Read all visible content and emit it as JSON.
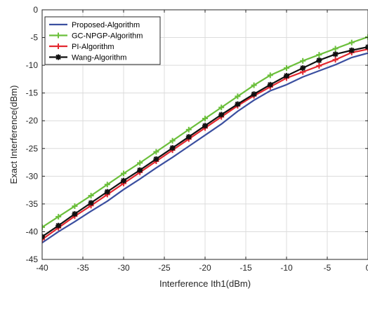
{
  "chart_data": {
    "type": "line",
    "title": "",
    "xlabel": "Interference Ith1(dBm)",
    "ylabel": "Exact Interference(dBm)",
    "xlim": [
      -40,
      0
    ],
    "ylim": [
      -45,
      0
    ],
    "xticks": [
      -40,
      -35,
      -30,
      -25,
      -20,
      -15,
      -10,
      -5,
      0
    ],
    "yticks": [
      0,
      -5,
      -10,
      -15,
      -20,
      -25,
      -30,
      -35,
      -40,
      -45
    ],
    "xtick_labels": [
      "-40",
      "-35",
      "-30",
      "-25",
      "-20",
      "-15",
      "-10",
      "-5",
      "0"
    ],
    "ytick_labels": [
      "0",
      "-5",
      "-10",
      "-15",
      "-20",
      "-25",
      "-30",
      "-35",
      "-40",
      "-45"
    ],
    "grid": true,
    "legend_position": "top-left",
    "x": [
      -40,
      -38,
      -36,
      -34,
      -32,
      -30,
      -28,
      -26,
      -24,
      -22,
      -20,
      -18,
      -16,
      -14,
      -12,
      -10,
      -8,
      -6,
      -4,
      -2,
      0
    ],
    "series": [
      {
        "name": "Proposed-Algorithm",
        "color": "#3b4fa0",
        "marker": "none",
        "values": [
          -42.0,
          -40.0,
          -38.2,
          -36.3,
          -34.5,
          -32.4,
          -30.5,
          -28.5,
          -26.6,
          -24.6,
          -22.6,
          -20.6,
          -18.3,
          -16.3,
          -14.6,
          -13.5,
          -12.1,
          -11.0,
          -9.9,
          -8.6,
          -7.8
        ]
      },
      {
        "name": "GC-NPGP-Algorithm",
        "color": "#6bbf3b",
        "marker": "plus",
        "values": [
          -39.2,
          -37.3,
          -35.4,
          -33.5,
          -31.5,
          -29.5,
          -27.6,
          -25.6,
          -23.6,
          -21.6,
          -19.6,
          -17.6,
          -15.6,
          -13.6,
          -11.8,
          -10.5,
          -9.2,
          -8.1,
          -7.0,
          -5.9,
          -4.9
        ]
      },
      {
        "name": "PI-Algorithm",
        "color": "#e3272f",
        "marker": "plus",
        "values": [
          -41.4,
          -39.3,
          -37.2,
          -35.3,
          -33.3,
          -31.3,
          -29.3,
          -27.3,
          -25.3,
          -23.3,
          -21.3,
          -19.3,
          -17.3,
          -15.5,
          -13.9,
          -12.3,
          -11.2,
          -10.1,
          -9.0,
          -7.7,
          -7.1
        ]
      },
      {
        "name": "Wang-Algorithm",
        "color": "#111111",
        "marker": "star",
        "values": [
          -40.9,
          -38.9,
          -36.8,
          -34.8,
          -32.8,
          -30.8,
          -28.9,
          -26.9,
          -24.9,
          -22.9,
          -20.9,
          -18.9,
          -17.0,
          -15.2,
          -13.5,
          -11.9,
          -10.5,
          -9.1,
          -8.0,
          -7.3,
          -6.7
        ]
      }
    ]
  }
}
